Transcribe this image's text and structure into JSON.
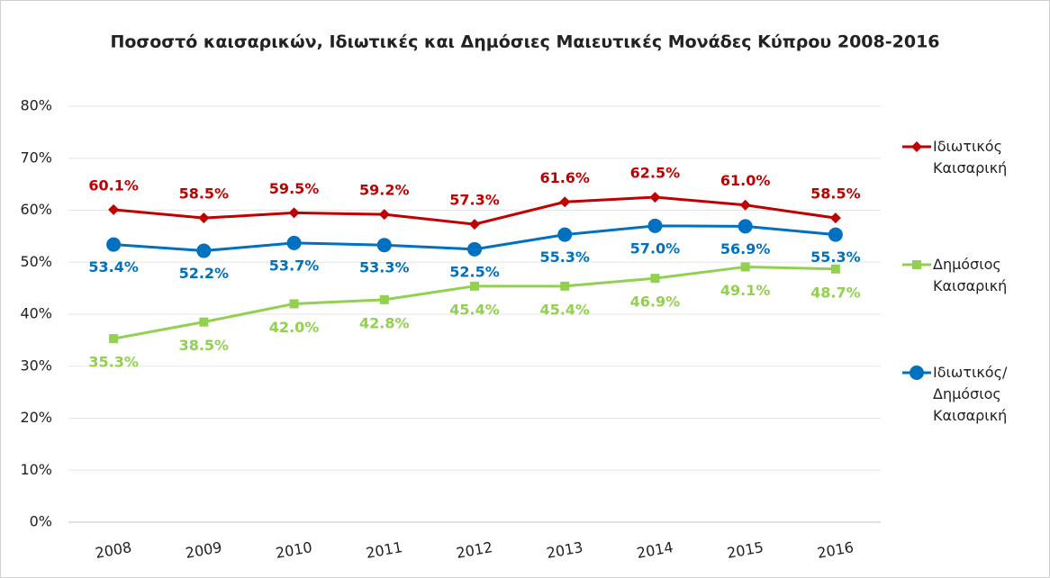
{
  "chart_data": {
    "type": "line",
    "title": "Ποσοστό καισαρικών, Ιδιωτικές και Δημόσιες Μαιευτικές Μονάδες Κύπρου 2008-2016",
    "categories": [
      "2008",
      "2009",
      "2010",
      "2011",
      "2012",
      "2013",
      "2014",
      "2015",
      "2016"
    ],
    "series": [
      {
        "name": "Ιδιωτικός Καισαρική",
        "color": "#c00000",
        "marker": "diamond",
        "values": [
          60.1,
          58.5,
          59.5,
          59.2,
          57.3,
          61.6,
          62.5,
          61.0,
          58.5
        ],
        "value_labels": [
          "60.1%",
          "58.5%",
          "59.5%",
          "59.2%",
          "57.3%",
          "61.6%",
          "62.5%",
          "61.0%",
          "58.5%"
        ]
      },
      {
        "name": "Δημόσιος Καισαρική",
        "color": "#92d050",
        "marker": "square",
        "values": [
          35.3,
          38.5,
          42.0,
          42.8,
          45.4,
          45.4,
          46.9,
          49.1,
          48.7
        ],
        "value_labels": [
          "35.3%",
          "38.5%",
          "42.0%",
          "42.8%",
          "45.4%",
          "45.4%",
          "46.9%",
          "49.1%",
          "48.7%"
        ]
      },
      {
        "name": "Ιδιωτικός/ Δημόσιος Καισαρική",
        "color": "#0070c0",
        "marker": "circle",
        "values": [
          53.4,
          52.2,
          53.7,
          53.3,
          52.5,
          55.3,
          57.0,
          56.9,
          55.3
        ],
        "value_labels": [
          "53.4%",
          "52.2%",
          "53.7%",
          "53.3%",
          "52.5%",
          "55.3%",
          "57.0%",
          "56.9%",
          "55.3%"
        ]
      }
    ],
    "ylim": [
      0,
      80
    ],
    "yticks": [
      {
        "value": 0,
        "label": "0%"
      },
      {
        "value": 10,
        "label": "10%"
      },
      {
        "value": 20,
        "label": "20%"
      },
      {
        "value": 30,
        "label": "30%"
      },
      {
        "value": 40,
        "label": "40%"
      },
      {
        "value": 50,
        "label": "50%"
      },
      {
        "value": 60,
        "label": "60%"
      },
      {
        "value": 70,
        "label": "70%"
      },
      {
        "value": 80,
        "label": "80%"
      }
    ],
    "grid": true,
    "legend": "right"
  }
}
